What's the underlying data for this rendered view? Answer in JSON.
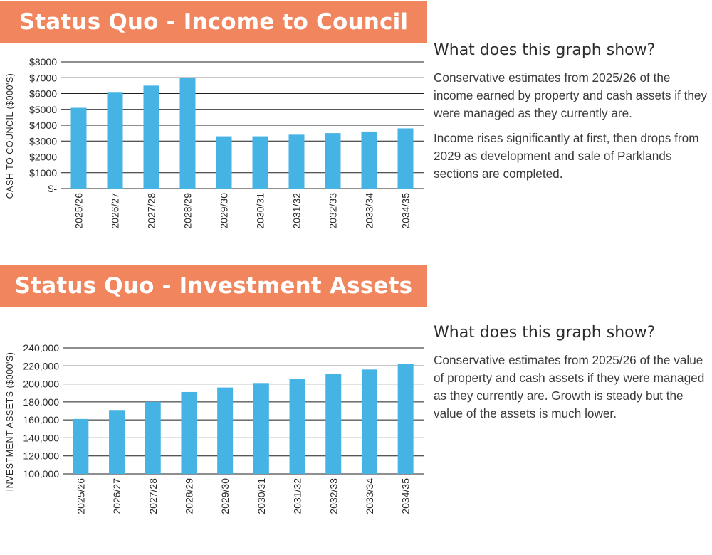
{
  "colors": {
    "accent": "#F0855E",
    "bar": "#45B3E3",
    "grid": "#1f1f1f",
    "text": "#3a3a3a"
  },
  "panel1": {
    "banner": "Status Quo - Income to Council",
    "heading": "What does this graph show?",
    "paragraphs": [
      "Conservative estimates from 2025/26 of the income earned by property and cash assets if they were managed as they currently are.",
      "Income rises significantly at first, then drops from 2029 as development and sale of Parklands sections are completed."
    ]
  },
  "panel2": {
    "banner": "Status Quo - Investment Assets",
    "heading": "What does this graph show?",
    "paragraphs": [
      "Conservative estimates from 2025/26 of the value of property and cash assets if they were managed as they currently are. Growth is steady but the value of the assets is much lower."
    ]
  },
  "chart_data": [
    {
      "type": "bar",
      "title": "Status Quo - Income to Council",
      "ylabel": "CASH TO COUNCIL ($000'S)",
      "xlabel": "",
      "categories": [
        "2025/26",
        "2026/27",
        "2027/28",
        "2028/29",
        "2029/30",
        "2030/31",
        "2031/32",
        "2032/33",
        "2033/34",
        "2034/35"
      ],
      "values": [
        5100,
        6100,
        6500,
        7000,
        3300,
        3300,
        3400,
        3500,
        3600,
        3800
      ],
      "ylim": [
        0,
        8000
      ],
      "yticks": [
        0,
        1000,
        2000,
        3000,
        4000,
        5000,
        6000,
        7000,
        8000
      ],
      "ytick_labels": [
        "$-",
        "$1000",
        "$2000",
        "$3000",
        "$4000",
        "$5000",
        "$6000",
        "$7000",
        "$8000"
      ],
      "grid": true,
      "legend": "none"
    },
    {
      "type": "bar",
      "title": "Status Quo - Investment Assets",
      "ylabel": "INVESTMENT ASSETS ($000'S)",
      "xlabel": "",
      "categories": [
        "2025/26",
        "2026/27",
        "2027/28",
        "2028/29",
        "2029/30",
        "2030/31",
        "2031/32",
        "2032/33",
        "2033/34",
        "2034/35"
      ],
      "values": [
        161000,
        171000,
        180000,
        191000,
        196000,
        201000,
        206000,
        211000,
        216000,
        222000
      ],
      "ylim": [
        100000,
        240000
      ],
      "yticks": [
        100000,
        120000,
        140000,
        160000,
        180000,
        200000,
        220000,
        240000
      ],
      "ytick_labels": [
        "100,000",
        "120,000",
        "140,000",
        "160,000",
        "180,000",
        "200,000",
        "220,000",
        "240,000"
      ],
      "grid": true,
      "legend": "none"
    }
  ]
}
